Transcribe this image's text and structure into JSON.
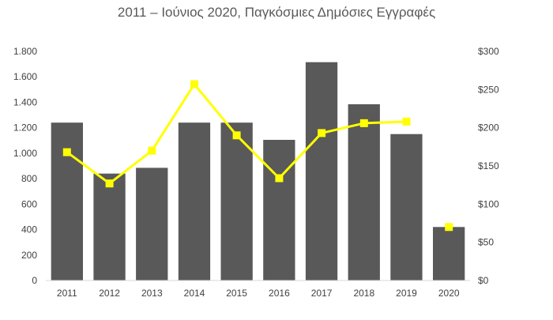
{
  "chart_data": {
    "type": "bar",
    "title": "2011 – Ιούνιος 2020, Παγκόσμιες Δημόσιες Εγγραφές",
    "categories": [
      "2011",
      "2012",
      "2013",
      "2014",
      "2015",
      "2016",
      "2017",
      "2018",
      "2019",
      "2020"
    ],
    "series": [
      {
        "type": "bar",
        "axis": "left",
        "color": "#595959",
        "values": [
          1240,
          840,
          885,
          1240,
          1240,
          1105,
          1715,
          1385,
          1150,
          420
        ]
      },
      {
        "type": "line",
        "axis": "right",
        "color": "#FFFF00",
        "marker": "square",
        "values": [
          168,
          127,
          170,
          257,
          190,
          134,
          193,
          206,
          208,
          null
        ],
        "extra_point": {
          "category": "2020",
          "value": 70
        }
      }
    ],
    "y_left": {
      "lim": [
        0,
        1800
      ],
      "ticks": [
        0,
        200,
        400,
        600,
        800,
        1000,
        1200,
        1400,
        1600,
        1800
      ],
      "tick_labels": [
        "0",
        "200",
        "400",
        "600",
        "800",
        "1.000",
        "1.200",
        "1.400",
        "1.600",
        "1.800"
      ]
    },
    "y_right": {
      "lim": [
        0,
        300
      ],
      "ticks": [
        0,
        50,
        100,
        150,
        200,
        250,
        300
      ],
      "tick_labels": [
        "$0",
        "$50",
        "$100",
        "$150",
        "$200",
        "$250",
        "$300"
      ]
    },
    "grid": false,
    "legend": "none"
  }
}
